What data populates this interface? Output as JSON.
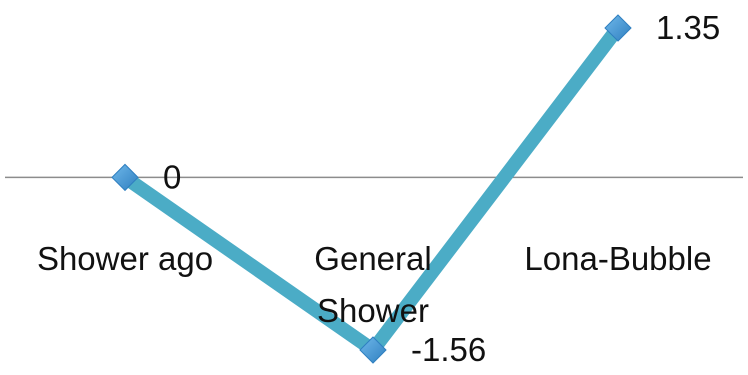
{
  "chart_data": {
    "type": "line",
    "categories": [
      "Shower ago",
      "General Shower",
      "Lona-Bubble"
    ],
    "series": [
      {
        "values": [
          0,
          -1.56,
          1.35
        ]
      }
    ],
    "data_labels": [
      "0",
      "-1.56",
      "1.35"
    ],
    "title": "",
    "xlabel": "",
    "ylabel": "",
    "ylim": [
      -1.56,
      1.35
    ],
    "legend": "none",
    "grid": false,
    "colors": {
      "line": "#4bacc6",
      "marker": "#2f7fc0",
      "marker_light": "#6fb8ea",
      "axis": "#8c8c8c"
    }
  }
}
